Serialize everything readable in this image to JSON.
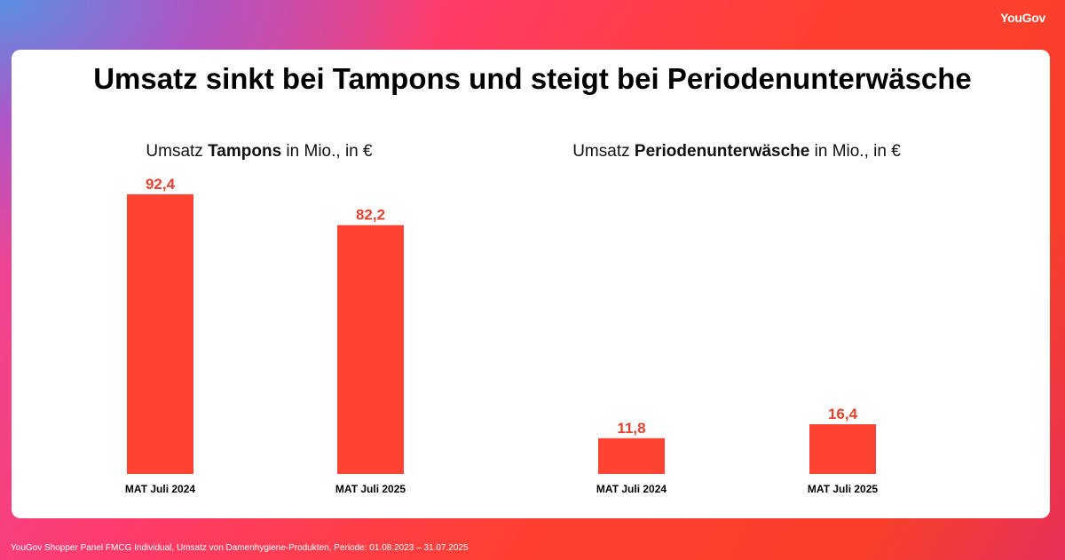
{
  "logo": "YouGov",
  "title": "Umsatz sinkt bei Tampons und steigt bei Periodenunterwäsche",
  "footer": "YouGov Shopper Panel FMCG Individual, Umsatz von Damenhygiene-Produkten, Periode: 01.08.2023 – 31.07.2025",
  "colors": {
    "bar": "#ff4332",
    "label": "#e8412f"
  },
  "chart_data": [
    {
      "type": "bar",
      "title_pre": "Umsatz ",
      "title_bold": "Tampons",
      "title_post": " in Mio., in €",
      "categories": [
        "MAT Juli 2024",
        "MAT Juli 2025"
      ],
      "values": [
        92.4,
        82.2
      ],
      "labels": [
        "92,4",
        "82,2"
      ],
      "ylim": [
        0,
        100
      ]
    },
    {
      "type": "bar",
      "title_pre": "Umsatz ",
      "title_bold": "Periodenunterwäsche",
      "title_post": " in Mio., in €",
      "categories": [
        "MAT Juli 2024",
        "MAT Juli 2025"
      ],
      "values": [
        11.8,
        16.4
      ],
      "labels": [
        "11,8",
        "16,4"
      ],
      "ylim": [
        0,
        100
      ]
    }
  ]
}
